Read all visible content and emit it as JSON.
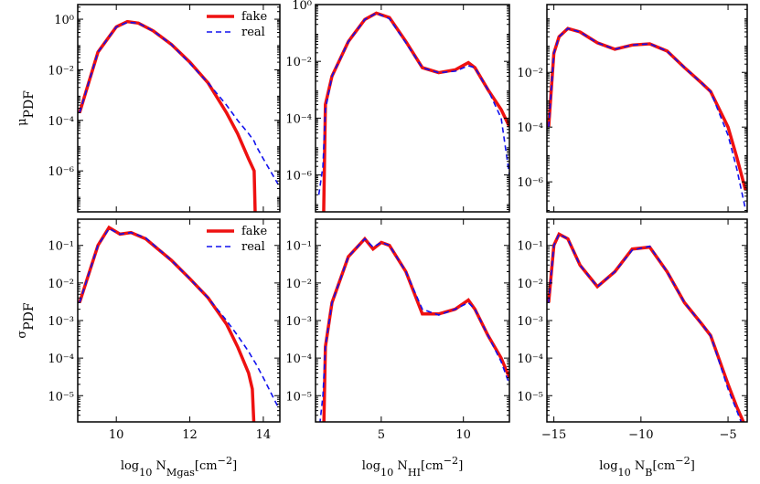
{
  "chart_data": [
    {
      "type": "line",
      "xlim": [
        8.95,
        14.45
      ],
      "xticks": [
        10,
        12,
        14
      ],
      "xticklabels": false,
      "ylim": [
        2.4e-08,
        3.8
      ],
      "log_y": true,
      "yticks": [
        {
          "value": 1e-06,
          "label": "10⁻⁶"
        },
        {
          "value": 0.0001,
          "label": "10⁻⁴"
        },
        {
          "value": 0.01,
          "label": "10⁻²"
        },
        {
          "value": 1,
          "label": "10⁰"
        }
      ],
      "ylabel": [
        {
          "text": "μ"
        },
        {
          "text": "PDF",
          "pos": "sub"
        }
      ],
      "legend": "upper right",
      "x": [
        9,
        9.5,
        10,
        10.3,
        10.6,
        11,
        11.5,
        12,
        12.5,
        13,
        13.3,
        13.6,
        13.75,
        13.8,
        14,
        14.4
      ],
      "series": [
        {
          "name": "fake",
          "color": "#ee1111",
          "style": "solid",
          "values": [
            0.0002,
            0.05,
            0.5,
            0.8,
            0.7,
            0.35,
            0.1,
            0.02,
            0.003,
            0.0002,
            3e-05,
            3e-06,
            1e-06,
            1e-09,
            null,
            null
          ]
        },
        {
          "name": "real",
          "color": "#1111ee",
          "style": "dashed",
          "values": [
            0.0002,
            0.05,
            0.5,
            0.75,
            0.7,
            0.35,
            0.1,
            0.018,
            0.003,
            0.0004,
            0.0001,
            3e-05,
            1.5e-05,
            1e-05,
            3e-06,
            3e-07
          ]
        }
      ]
    },
    {
      "type": "line",
      "xlim": [
        1,
        12.8
      ],
      "xticks": [
        5,
        10
      ],
      "xticklabels": false,
      "ylim": [
        5e-08,
        1
      ],
      "log_y": true,
      "yticks": [
        {
          "value": 1e-06,
          "label": "10⁻⁶"
        },
        {
          "value": 0.0001,
          "label": "10⁻⁴"
        },
        {
          "value": 0.01,
          "label": "10⁻²"
        },
        {
          "value": 1,
          "label": "10⁰"
        }
      ],
      "x": [
        1.2,
        1.45,
        1.6,
        2,
        3,
        4,
        4.7,
        5.5,
        6.5,
        7.5,
        8.5,
        9.5,
        10.3,
        10.7,
        11.5,
        12.3,
        12.8
      ],
      "series": [
        {
          "name": "fake",
          "color": "#ee1111",
          "style": "solid",
          "values": [
            null,
            1e-09,
            0.0003,
            0.003,
            0.05,
            0.3,
            0.5,
            0.35,
            0.05,
            0.006,
            0.004,
            0.005,
            0.009,
            0.006,
            0.001,
            0.0002,
            5e-05
          ]
        },
        {
          "name": "real",
          "color": "#1111ee",
          "style": "dashed",
          "values": [
            2e-07,
            2e-06,
            0.0002,
            0.003,
            0.05,
            0.3,
            0.5,
            0.32,
            0.045,
            0.006,
            0.004,
            0.0045,
            0.007,
            0.006,
            0.001,
            0.0001,
            1e-06
          ]
        }
      ]
    },
    {
      "type": "line",
      "xlim": [
        -15.4,
        -3.9
      ],
      "xticks": [
        {
          "value": -15,
          "label": "−15"
        },
        {
          "value": -10,
          "label": "−10"
        },
        {
          "value": -5,
          "label": "−5"
        }
      ],
      "xticklabels": false,
      "ylim": [
        8e-08,
        3
      ],
      "log_y": true,
      "yticks": [
        {
          "value": 1e-06,
          "label": "10⁻⁶"
        },
        {
          "value": 0.0001,
          "label": "10⁻⁴"
        },
        {
          "value": 0.01,
          "label": "10⁻²"
        }
      ],
      "x": [
        -15.3,
        -15,
        -14.7,
        -14.2,
        -13.5,
        -12.5,
        -11.5,
        -10.5,
        -9.5,
        -8.5,
        -7.5,
        -6.5,
        -6,
        -5,
        -4.5,
        -4
      ],
      "series": [
        {
          "name": "fake",
          "color": "#ee1111",
          "style": "solid",
          "values": [
            0.0001,
            0.05,
            0.2,
            0.4,
            0.3,
            0.12,
            0.07,
            0.1,
            0.11,
            0.06,
            0.015,
            0.004,
            0.002,
            0.0001,
            8e-06,
            5e-07
          ]
        },
        {
          "name": "real",
          "color": "#1111ee",
          "style": "dashed",
          "values": [
            0.0001,
            0.05,
            0.2,
            0.4,
            0.3,
            0.12,
            0.07,
            0.1,
            0.11,
            0.06,
            0.015,
            0.004,
            0.002,
            5e-05,
            3e-06,
            1e-07
          ]
        }
      ]
    },
    {
      "type": "line",
      "xlim": [
        8.95,
        14.45
      ],
      "xticks": [
        10,
        12,
        14
      ],
      "xticklabels": true,
      "ylim": [
        2e-06,
        0.5
      ],
      "log_y": true,
      "yticks": [
        {
          "value": 1e-05,
          "label": "10⁻⁵"
        },
        {
          "value": 0.0001,
          "label": "10⁻⁴"
        },
        {
          "value": 0.001,
          "label": "10⁻³"
        },
        {
          "value": 0.01,
          "label": "10⁻²"
        },
        {
          "value": 0.1,
          "label": "10⁻¹"
        }
      ],
      "ylabel": [
        {
          "text": "σ"
        },
        {
          "text": "PDF",
          "pos": "sub"
        }
      ],
      "xlabel": [
        {
          "text": "log"
        },
        {
          "text": "10",
          "pos": "sub"
        },
        {
          "text": " N"
        },
        {
          "text": "Mgas",
          "pos": "sub"
        },
        {
          "text": "[cm"
        },
        {
          "text": "−2",
          "pos": "sup"
        },
        {
          "text": "]"
        }
      ],
      "legend": "upper right",
      "x": [
        9,
        9.5,
        9.8,
        10.1,
        10.4,
        10.8,
        11.5,
        12,
        12.5,
        13,
        13.3,
        13.6,
        13.7,
        13.8,
        14,
        14.4
      ],
      "series": [
        {
          "name": "fake",
          "color": "#ee1111",
          "style": "solid",
          "values": [
            0.003,
            0.1,
            0.3,
            0.2,
            0.22,
            0.15,
            0.04,
            0.013,
            0.004,
            0.0008,
            0.0002,
            4e-05,
            1.5e-05,
            1e-07,
            null,
            null
          ]
        },
        {
          "name": "real",
          "color": "#1111ee",
          "style": "dashed",
          "values": [
            0.003,
            0.1,
            0.28,
            0.2,
            0.22,
            0.16,
            0.04,
            0.013,
            0.004,
            0.001,
            0.0004,
            0.00015,
            0.0001,
            7e-05,
            3e-05,
            5e-06
          ]
        }
      ]
    },
    {
      "type": "line",
      "xlim": [
        1,
        12.8
      ],
      "xticks": [
        5,
        10
      ],
      "xticklabels": true,
      "ylim": [
        2e-06,
        0.5
      ],
      "log_y": true,
      "yticks": [
        {
          "value": 1e-05,
          "label": "10⁻⁵"
        },
        {
          "value": 0.0001,
          "label": "10⁻⁴"
        },
        {
          "value": 0.001,
          "label": "10⁻³"
        },
        {
          "value": 0.01,
          "label": "10⁻²"
        },
        {
          "value": 0.1,
          "label": "10⁻¹"
        }
      ],
      "xlabel": [
        {
          "text": "log"
        },
        {
          "text": "10",
          "pos": "sub"
        },
        {
          "text": " N"
        },
        {
          "text": "HI",
          "pos": "sub"
        },
        {
          "text": "[cm"
        },
        {
          "text": "−2",
          "pos": "sup"
        },
        {
          "text": "]"
        }
      ],
      "x": [
        1.2,
        1.45,
        1.6,
        2,
        3,
        4,
        4.5,
        5,
        5.5,
        6.5,
        7.5,
        8.5,
        9.5,
        10.3,
        10.7,
        11.5,
        12.3,
        12.8
      ],
      "series": [
        {
          "name": "fake",
          "color": "#ee1111",
          "style": "solid",
          "values": [
            null,
            1e-07,
            0.0002,
            0.003,
            0.05,
            0.15,
            0.08,
            0.12,
            0.1,
            0.02,
            0.0015,
            0.0015,
            0.002,
            0.0035,
            0.002,
            0.0004,
            0.0001,
            3e-05
          ]
        },
        {
          "name": "real",
          "color": "#1111ee",
          "style": "dashed",
          "values": [
            1e-06,
            1e-05,
            0.0002,
            0.003,
            0.05,
            0.15,
            0.09,
            0.12,
            0.1,
            0.02,
            0.002,
            0.0014,
            0.002,
            0.003,
            0.002,
            0.0004,
            8e-05,
            2e-05
          ]
        }
      ]
    },
    {
      "type": "line",
      "xlim": [
        -15.4,
        -3.9
      ],
      "xticks": [
        {
          "value": -15,
          "label": "−15"
        },
        {
          "value": -10,
          "label": "−10"
        },
        {
          "value": -5,
          "label": "−5"
        }
      ],
      "xticklabels": true,
      "ylim": [
        2e-06,
        0.5
      ],
      "log_y": true,
      "yticks": [
        {
          "value": 1e-05,
          "label": "10⁻⁵"
        },
        {
          "value": 0.0001,
          "label": "10⁻⁴"
        },
        {
          "value": 0.001,
          "label": "10⁻³"
        },
        {
          "value": 0.01,
          "label": "10⁻²"
        },
        {
          "value": 0.1,
          "label": "10⁻¹"
        }
      ],
      "xlabel": [
        {
          "text": "log"
        },
        {
          "text": "10",
          "pos": "sub"
        },
        {
          "text": " N"
        },
        {
          "text": "B",
          "pos": "sub"
        },
        {
          "text": "[cm"
        },
        {
          "text": "−2",
          "pos": "sup"
        },
        {
          "text": "]"
        }
      ],
      "x": [
        -15.3,
        -15,
        -14.7,
        -14.2,
        -13.5,
        -12.5,
        -11.5,
        -10.5,
        -9.5,
        -8.5,
        -7.5,
        -6.5,
        -6,
        -5,
        -4.5,
        -4
      ],
      "series": [
        {
          "name": "fake",
          "color": "#ee1111",
          "style": "solid",
          "values": [
            0.003,
            0.1,
            0.2,
            0.15,
            0.03,
            0.008,
            0.02,
            0.08,
            0.09,
            0.02,
            0.003,
            0.0008,
            0.0004,
            2e-05,
            5e-06,
            1.5e-06
          ]
        },
        {
          "name": "real",
          "color": "#1111ee",
          "style": "dashed",
          "values": [
            0.003,
            0.1,
            0.2,
            0.15,
            0.03,
            0.008,
            0.02,
            0.075,
            0.095,
            0.02,
            0.003,
            0.0008,
            0.0004,
            1.5e-05,
            4e-06,
            1e-06
          ]
        }
      ]
    }
  ]
}
